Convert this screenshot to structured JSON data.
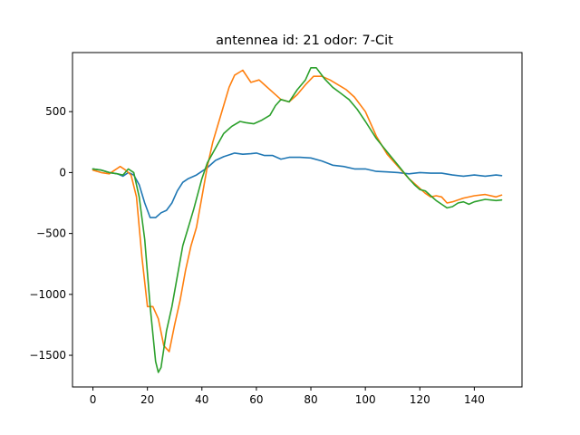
{
  "chart_data": {
    "type": "line",
    "title": "antennea id: 21    odor: 7-Cit",
    "xlabel": "",
    "ylabel": "",
    "xlim": [
      -7.5,
      157.5
    ],
    "ylim": [
      -1760,
      985
    ],
    "x_ticks": [
      0,
      20,
      40,
      60,
      80,
      100,
      120,
      140
    ],
    "x_tick_labels": [
      "0",
      "20",
      "40",
      "60",
      "80",
      "100",
      "120",
      "140"
    ],
    "y_ticks": [
      -1500,
      -1000,
      -500,
      0,
      500
    ],
    "y_tick_labels": [
      "−1500",
      "−1000",
      "−500",
      "0",
      "500"
    ],
    "grid": false,
    "legend": "none",
    "series": [
      {
        "color": "#1f77b4",
        "points": [
          [
            0,
            30
          ],
          [
            3,
            20
          ],
          [
            6,
            0
          ],
          [
            9,
            -10
          ],
          [
            11,
            -30
          ],
          [
            13,
            0
          ],
          [
            15,
            -20
          ],
          [
            17,
            -100
          ],
          [
            19,
            -250
          ],
          [
            21,
            -370
          ],
          [
            23,
            -370
          ],
          [
            25,
            -330
          ],
          [
            27,
            -310
          ],
          [
            29,
            -250
          ],
          [
            31,
            -150
          ],
          [
            33,
            -80
          ],
          [
            35,
            -50
          ],
          [
            38,
            -20
          ],
          [
            40,
            10
          ],
          [
            42,
            40
          ],
          [
            45,
            100
          ],
          [
            48,
            130
          ],
          [
            52,
            160
          ],
          [
            55,
            150
          ],
          [
            58,
            155
          ],
          [
            60,
            160
          ],
          [
            63,
            140
          ],
          [
            66,
            140
          ],
          [
            69,
            110
          ],
          [
            72,
            125
          ],
          [
            76,
            125
          ],
          [
            80,
            120
          ],
          [
            84,
            95
          ],
          [
            88,
            60
          ],
          [
            92,
            50
          ],
          [
            96,
            30
          ],
          [
            100,
            30
          ],
          [
            104,
            10
          ],
          [
            108,
            5
          ],
          [
            112,
            0
          ],
          [
            116,
            -10
          ],
          [
            120,
            0
          ],
          [
            124,
            -5
          ],
          [
            128,
            -5
          ],
          [
            132,
            -20
          ],
          [
            136,
            -30
          ],
          [
            140,
            -20
          ],
          [
            144,
            -30
          ],
          [
            148,
            -20
          ],
          [
            150,
            -25
          ]
        ]
      },
      {
        "color": "#ff7f0e",
        "points": [
          [
            0,
            20
          ],
          [
            3,
            0
          ],
          [
            6,
            -10
          ],
          [
            8,
            20
          ],
          [
            10,
            50
          ],
          [
            12,
            20
          ],
          [
            14,
            -20
          ],
          [
            16,
            -200
          ],
          [
            18,
            -700
          ],
          [
            20,
            -1100
          ],
          [
            22,
            -1100
          ],
          [
            24,
            -1200
          ],
          [
            26,
            -1420
          ],
          [
            28,
            -1470
          ],
          [
            30,
            -1250
          ],
          [
            32,
            -1050
          ],
          [
            34,
            -800
          ],
          [
            36,
            -600
          ],
          [
            38,
            -450
          ],
          [
            40,
            -200
          ],
          [
            42,
            50
          ],
          [
            44,
            250
          ],
          [
            46,
            400
          ],
          [
            48,
            550
          ],
          [
            50,
            700
          ],
          [
            52,
            800
          ],
          [
            55,
            840
          ],
          [
            58,
            740
          ],
          [
            61,
            760
          ],
          [
            63,
            720
          ],
          [
            66,
            660
          ],
          [
            69,
            600
          ],
          [
            72,
            580
          ],
          [
            75,
            640
          ],
          [
            78,
            720
          ],
          [
            81,
            790
          ],
          [
            84,
            790
          ],
          [
            87,
            760
          ],
          [
            90,
            720
          ],
          [
            93,
            680
          ],
          [
            96,
            620
          ],
          [
            100,
            500
          ],
          [
            104,
            300
          ],
          [
            108,
            150
          ],
          [
            112,
            50
          ],
          [
            116,
            -50
          ],
          [
            118,
            -90
          ],
          [
            120,
            -130
          ],
          [
            122,
            -170
          ],
          [
            124,
            -200
          ],
          [
            126,
            -190
          ],
          [
            128,
            -200
          ],
          [
            130,
            -250
          ],
          [
            132,
            -240
          ],
          [
            136,
            -210
          ],
          [
            140,
            -190
          ],
          [
            144,
            -180
          ],
          [
            148,
            -200
          ],
          [
            150,
            -185
          ]
        ]
      },
      {
        "color": "#2ca02c",
        "points": [
          [
            0,
            30
          ],
          [
            3,
            20
          ],
          [
            6,
            0
          ],
          [
            9,
            -10
          ],
          [
            11,
            -20
          ],
          [
            13,
            30
          ],
          [
            15,
            0
          ],
          [
            17,
            -200
          ],
          [
            19,
            -550
          ],
          [
            21,
            -1100
          ],
          [
            23,
            -1550
          ],
          [
            24,
            -1640
          ],
          [
            25,
            -1600
          ],
          [
            27,
            -1300
          ],
          [
            29,
            -1100
          ],
          [
            31,
            -850
          ],
          [
            33,
            -600
          ],
          [
            35,
            -450
          ],
          [
            37,
            -300
          ],
          [
            40,
            -50
          ],
          [
            42,
            80
          ],
          [
            45,
            200
          ],
          [
            48,
            320
          ],
          [
            51,
            380
          ],
          [
            54,
            420
          ],
          [
            56,
            410
          ],
          [
            59,
            400
          ],
          [
            62,
            430
          ],
          [
            65,
            470
          ],
          [
            67,
            550
          ],
          [
            69,
            600
          ],
          [
            72,
            580
          ],
          [
            75,
            680
          ],
          [
            78,
            760
          ],
          [
            80,
            860
          ],
          [
            82,
            860
          ],
          [
            85,
            770
          ],
          [
            88,
            700
          ],
          [
            91,
            650
          ],
          [
            94,
            600
          ],
          [
            97,
            520
          ],
          [
            100,
            420
          ],
          [
            104,
            280
          ],
          [
            108,
            170
          ],
          [
            112,
            60
          ],
          [
            116,
            -50
          ],
          [
            118,
            -100
          ],
          [
            120,
            -140
          ],
          [
            122,
            -150
          ],
          [
            124,
            -190
          ],
          [
            126,
            -230
          ],
          [
            128,
            -260
          ],
          [
            130,
            -290
          ],
          [
            132,
            -280
          ],
          [
            134,
            -250
          ],
          [
            136,
            -240
          ],
          [
            138,
            -260
          ],
          [
            140,
            -240
          ],
          [
            144,
            -220
          ],
          [
            148,
            -230
          ],
          [
            150,
            -225
          ]
        ]
      }
    ]
  }
}
